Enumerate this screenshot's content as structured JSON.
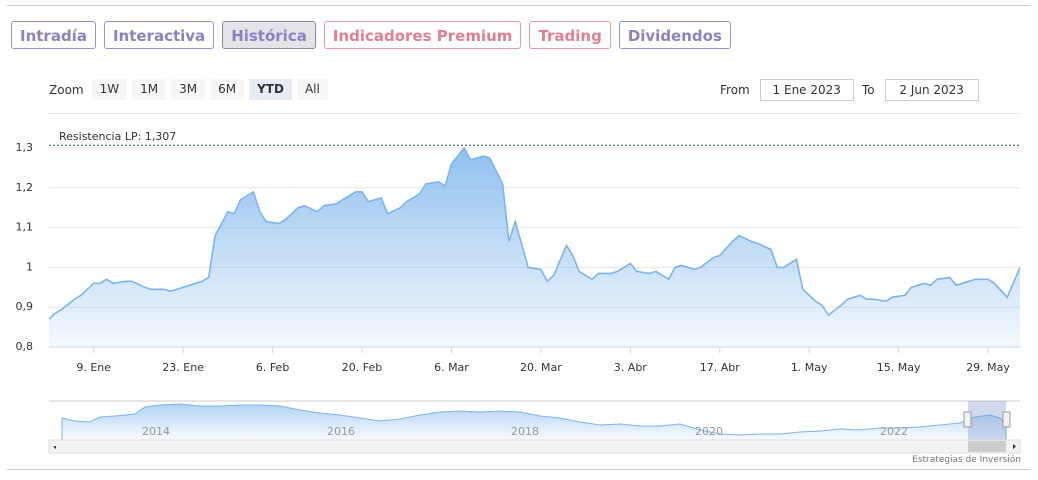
{
  "tabs": [
    "Intradía",
    "Interactiva",
    "Histórica",
    "Indicadores Premium",
    "Trading",
    "Dividendos"
  ],
  "zoom": {
    "label": "Zoom",
    "buttons": [
      "1W",
      "1M",
      "3M",
      "6M",
      "YTD",
      "All"
    ]
  },
  "from": {
    "label": "From",
    "value": "1 Ene 2023"
  },
  "to": {
    "label": "To",
    "value": "2 Jun 2023"
  },
  "chart_data": {
    "type": "area",
    "color": "#7cb5ec",
    "annotation": "Resistencia LP: 1,307",
    "resistance": 1.307,
    "x": [
      2,
      3,
      4,
      6,
      7,
      9,
      10,
      11,
      12,
      14,
      15,
      17,
      18,
      20,
      21,
      23,
      24,
      26,
      27,
      28,
      30,
      31,
      32,
      34,
      35,
      36,
      38,
      39,
      41,
      42,
      44,
      45,
      47,
      48,
      50,
      51,
      52,
      54,
      55,
      57,
      58,
      60,
      61,
      63,
      64,
      65,
      67,
      68,
      70,
      71,
      73,
      74,
      75,
      77,
      79,
      80,
      81,
      83,
      84,
      85,
      87,
      88,
      90,
      91,
      93,
      94,
      96,
      97,
      99,
      100,
      101,
      103,
      104,
      106,
      107,
      109,
      110,
      112,
      113,
      115,
      116,
      117,
      119,
      120,
      122,
      123,
      124,
      126,
      127,
      129,
      130,
      131,
      133,
      134,
      136,
      137,
      139,
      140,
      141,
      143,
      144,
      146,
      147,
      149,
      150,
      152,
      154
    ],
    "values": [
      0.87,
      0.885,
      0.895,
      0.92,
      0.93,
      0.96,
      0.96,
      0.97,
      0.96,
      0.965,
      0.965,
      0.95,
      0.945,
      0.945,
      0.94,
      0.95,
      0.955,
      0.965,
      0.975,
      1.08,
      1.14,
      1.135,
      1.17,
      1.19,
      1.14,
      1.115,
      1.11,
      1.12,
      1.15,
      1.155,
      1.14,
      1.155,
      1.16,
      1.17,
      1.19,
      1.19,
      1.165,
      1.175,
      1.135,
      1.15,
      1.165,
      1.185,
      1.21,
      1.215,
      1.205,
      1.26,
      1.3,
      1.27,
      1.28,
      1.275,
      1.21,
      1.065,
      1.115,
      1.0,
      0.995,
      0.965,
      0.98,
      1.055,
      1.03,
      0.99,
      0.97,
      0.985,
      0.985,
      0.99,
      1.01,
      0.99,
      0.985,
      0.99,
      0.97,
      1.0,
      1.005,
      0.995,
      1.0,
      1.025,
      1.03,
      1.065,
      1.08,
      1.065,
      1.06,
      1.045,
      1.0,
      1.0,
      1.02,
      0.945,
      0.915,
      0.905,
      0.88,
      0.905,
      0.92,
      0.93,
      0.92,
      0.92,
      0.915,
      0.925,
      0.93,
      0.95,
      0.96,
      0.955,
      0.97,
      0.975,
      0.955,
      0.965,
      0.97,
      0.97,
      0.96,
      0.925,
      1.0
    ],
    "xlim": [
      2,
      154
    ],
    "xticks": [
      {
        "value": 9,
        "label": "9. Ene"
      },
      {
        "value": 23,
        "label": "23. Ene"
      },
      {
        "value": 37,
        "label": "6. Feb"
      },
      {
        "value": 51,
        "label": "20. Feb"
      },
      {
        "value": 65,
        "label": "6. Mar"
      },
      {
        "value": 79,
        "label": "20. Mar"
      },
      {
        "value": 93,
        "label": "3. Abr"
      },
      {
        "value": 107,
        "label": "17. Abr"
      },
      {
        "value": 121,
        "label": "1. May"
      },
      {
        "value": 135,
        "label": "15. May"
      },
      {
        "value": 149,
        "label": "29. May"
      }
    ],
    "ylim": [
      0.8,
      1.3
    ],
    "yticks": [
      {
        "value": 0.8,
        "label": "0,8"
      },
      {
        "value": 0.9,
        "label": "0,9"
      },
      1,
      {
        "value": 1.1,
        "label": "1,1"
      },
      {
        "value": 1.2,
        "label": "1,2"
      },
      {
        "value": 1.3,
        "label": "1,3"
      }
    ],
    "grid": true
  },
  "navigator": {
    "labels": [
      "2014",
      "2016",
      "2018",
      "2020",
      "2022"
    ]
  },
  "credit": "Estrategias de Inversión"
}
